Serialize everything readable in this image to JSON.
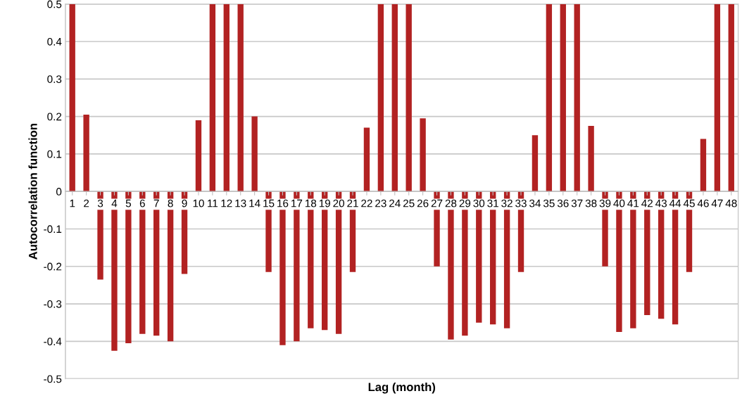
{
  "chart_data": {
    "type": "bar",
    "xlabel": "Lag (month)",
    "ylabel": "Autocorrelation function",
    "categories": [
      "1",
      "2",
      "3",
      "4",
      "5",
      "6",
      "7",
      "8",
      "9",
      "10",
      "11",
      "12",
      "13",
      "14",
      "15",
      "16",
      "17",
      "18",
      "19",
      "20",
      "21",
      "22",
      "23",
      "24",
      "25",
      "26",
      "27",
      "28",
      "29",
      "30",
      "31",
      "32",
      "33",
      "34",
      "35",
      "36",
      "37",
      "38",
      "39",
      "40",
      "41",
      "42",
      "43",
      "44",
      "45",
      "46",
      "47",
      "48"
    ],
    "values": [
      0.5,
      0.205,
      -0.235,
      -0.425,
      -0.405,
      -0.38,
      -0.385,
      -0.4,
      -0.22,
      0.19,
      0.5,
      0.5,
      0.5,
      0.2,
      -0.215,
      -0.41,
      -0.4,
      -0.365,
      -0.37,
      -0.38,
      -0.215,
      0.17,
      0.5,
      0.5,
      0.5,
      0.195,
      -0.2,
      -0.395,
      -0.385,
      -0.35,
      -0.355,
      -0.365,
      -0.215,
      0.15,
      0.5,
      0.5,
      0.5,
      0.175,
      -0.2,
      -0.375,
      -0.365,
      -0.33,
      -0.34,
      -0.355,
      -0.215,
      0.14,
      0.5,
      0.5
    ],
    "color": "#b22222",
    "ylim": [
      -0.5,
      0.5
    ],
    "yticks": [
      -0.5,
      -0.4,
      -0.3,
      -0.2,
      -0.1,
      0,
      0.1,
      0.2,
      0.3,
      0.4,
      0.5
    ],
    "grid": "y"
  }
}
